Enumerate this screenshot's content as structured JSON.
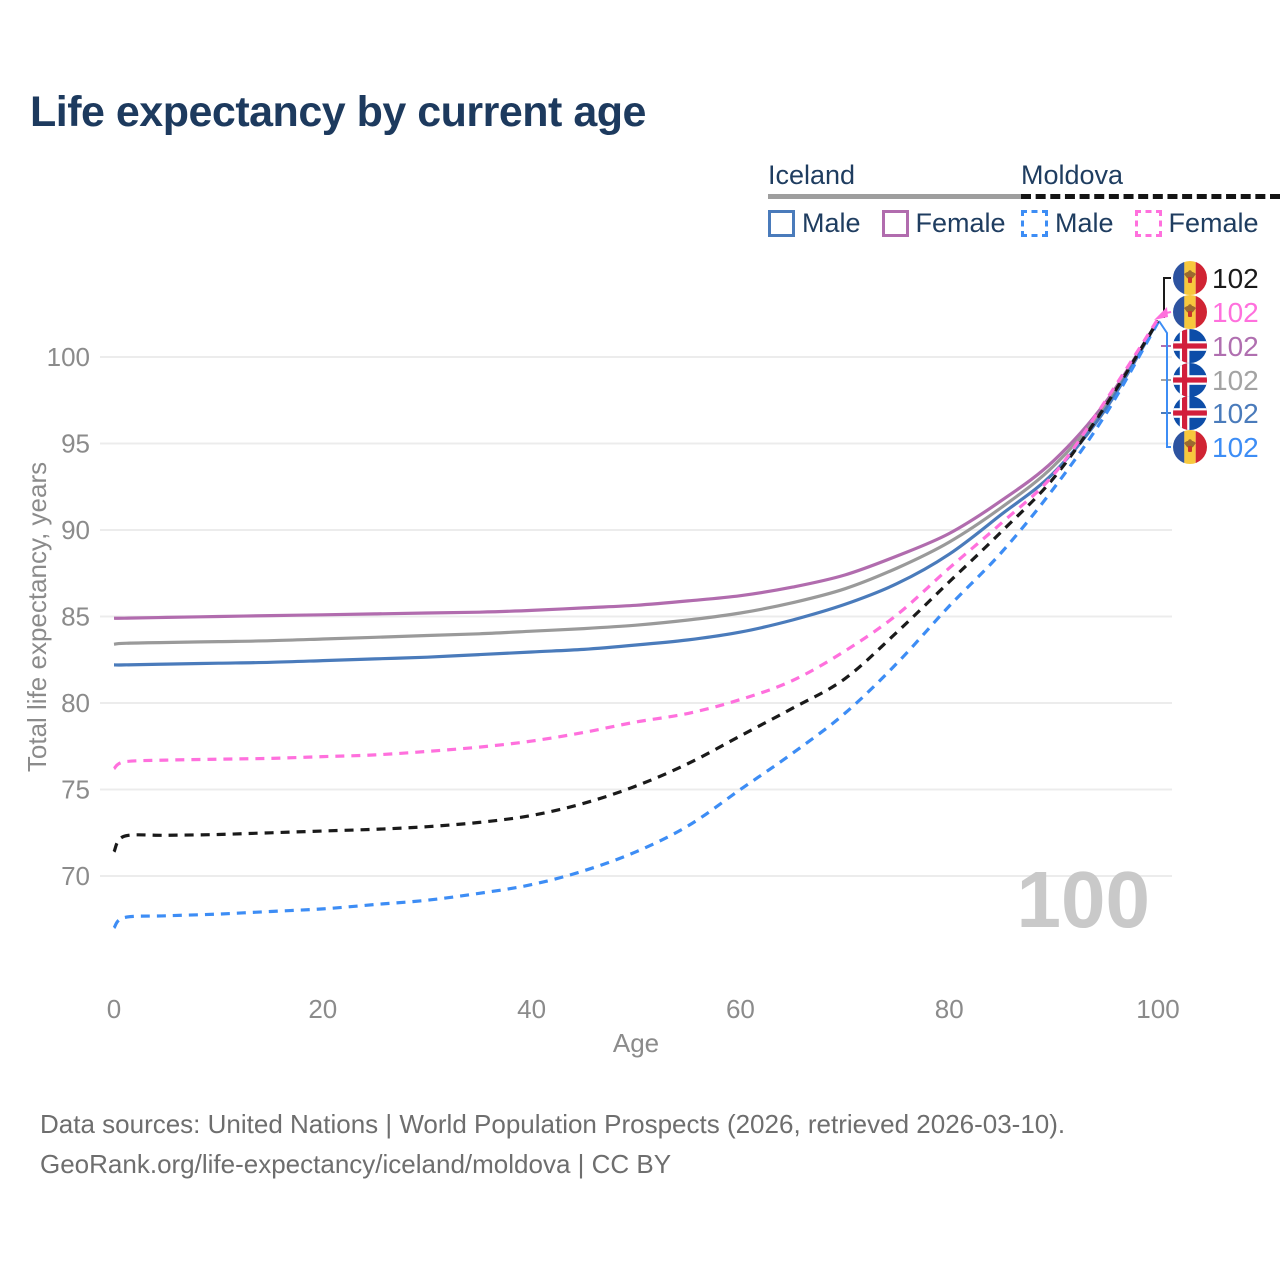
{
  "title": "Life expectancy by current age",
  "legend": {
    "groups": [
      {
        "country": "Iceland",
        "line_style": "solid",
        "line_color": "#9e9e9e",
        "items": [
          {
            "label": "Male",
            "color": "#4a7bbb",
            "dashed": false
          },
          {
            "label": "Female",
            "color": "#b16cae",
            "dashed": false
          }
        ]
      },
      {
        "country": "Moldova",
        "line_style": "dashed",
        "line_color": "#141414",
        "items": [
          {
            "label": "Male",
            "color": "#3d8df5",
            "dashed": true
          },
          {
            "label": "Female",
            "color": "#ff70dd",
            "dashed": true
          }
        ]
      }
    ]
  },
  "chart_data": {
    "type": "line",
    "title": "Life expectancy by current age",
    "xlabel": "Age",
    "ylabel": "Total life expectancy, years",
    "x_ticks": [
      0,
      20,
      40,
      60,
      80,
      100
    ],
    "y_ticks": [
      70,
      75,
      80,
      85,
      90,
      95,
      100
    ],
    "xlim": [
      0,
      104
    ],
    "ylim": [
      66.5,
      103.5
    ],
    "grid": true,
    "legend_position": "top-right",
    "watermark": "100",
    "x": [
      0,
      1,
      5,
      10,
      15,
      20,
      25,
      30,
      35,
      40,
      45,
      50,
      55,
      60,
      65,
      70,
      75,
      80,
      85,
      90,
      95,
      100
    ],
    "series": [
      {
        "id": "iceland-female",
        "name": "Iceland Female",
        "color": "#b16cae",
        "dashed": false,
        "values": [
          84.9,
          84.9,
          84.95,
          85.0,
          85.05,
          85.1,
          85.15,
          85.2,
          85.25,
          85.35,
          85.5,
          85.65,
          85.9,
          86.2,
          86.7,
          87.4,
          88.5,
          89.8,
          91.7,
          94.0,
          97.4,
          102.1
        ]
      },
      {
        "id": "iceland-total",
        "name": "Iceland",
        "color": "#9a9a9a",
        "dashed": false,
        "values": [
          83.4,
          83.45,
          83.5,
          83.55,
          83.6,
          83.7,
          83.8,
          83.9,
          84.0,
          84.15,
          84.3,
          84.5,
          84.8,
          85.2,
          85.8,
          86.6,
          87.8,
          89.3,
          91.3,
          93.7,
          97.2,
          102.1
        ]
      },
      {
        "id": "iceland-male",
        "name": "Iceland Male",
        "color": "#4a7bbb",
        "dashed": false,
        "values": [
          82.2,
          82.2,
          82.25,
          82.3,
          82.35,
          82.45,
          82.55,
          82.65,
          82.8,
          82.95,
          83.1,
          83.35,
          83.65,
          84.1,
          84.8,
          85.7,
          86.9,
          88.6,
          90.9,
          93.3,
          97.0,
          102.1
        ]
      },
      {
        "id": "moldova-male",
        "name": "Moldova Male",
        "color": "#3d8df5",
        "dashed": true,
        "values": [
          67.0,
          67.6,
          67.7,
          67.8,
          67.95,
          68.1,
          68.35,
          68.6,
          69.0,
          69.5,
          70.3,
          71.4,
          72.9,
          75.0,
          77.1,
          79.4,
          82.3,
          85.6,
          88.7,
          92.4,
          96.7,
          102.0
        ]
      },
      {
        "id": "moldova-total",
        "name": "Moldova",
        "color": "#1a1a1a",
        "dashed": true,
        "values": [
          71.4,
          72.3,
          72.35,
          72.4,
          72.5,
          72.6,
          72.7,
          72.85,
          73.1,
          73.5,
          74.2,
          75.2,
          76.5,
          78.1,
          79.7,
          81.4,
          84.1,
          87.0,
          89.9,
          93.0,
          97.2,
          102.1
        ]
      },
      {
        "id": "moldova-female",
        "name": "Moldova Female",
        "color": "#ff70dd",
        "dashed": true,
        "values": [
          76.2,
          76.6,
          76.7,
          76.75,
          76.8,
          76.9,
          77.0,
          77.2,
          77.45,
          77.8,
          78.3,
          78.9,
          79.4,
          80.2,
          81.3,
          83.0,
          85.1,
          87.8,
          90.4,
          93.2,
          97.5,
          102.2
        ]
      }
    ],
    "end_labels": [
      {
        "id": "moldova-total",
        "flag": "moldova",
        "value": "102",
        "color": "#1a1a1a"
      },
      {
        "id": "moldova-female",
        "flag": "moldova",
        "value": "102",
        "color": "#ff70dd"
      },
      {
        "id": "iceland-female",
        "flag": "iceland",
        "value": "102",
        "color": "#b06fb0"
      },
      {
        "id": "iceland-total",
        "flag": "iceland",
        "value": "102",
        "color": "#a3a3a3"
      },
      {
        "id": "iceland-male",
        "flag": "iceland",
        "value": "102",
        "color": "#4a7bbb"
      },
      {
        "id": "moldova-male",
        "flag": "moldova",
        "value": "102",
        "color": "#3d8df5"
      }
    ]
  },
  "footer": {
    "line1": "Data sources: United Nations | World Population Prospects (2026, retrieved 2026-03-10).",
    "line2": "GeoRank.org/life-expectancy/iceland/moldova | CC BY"
  }
}
